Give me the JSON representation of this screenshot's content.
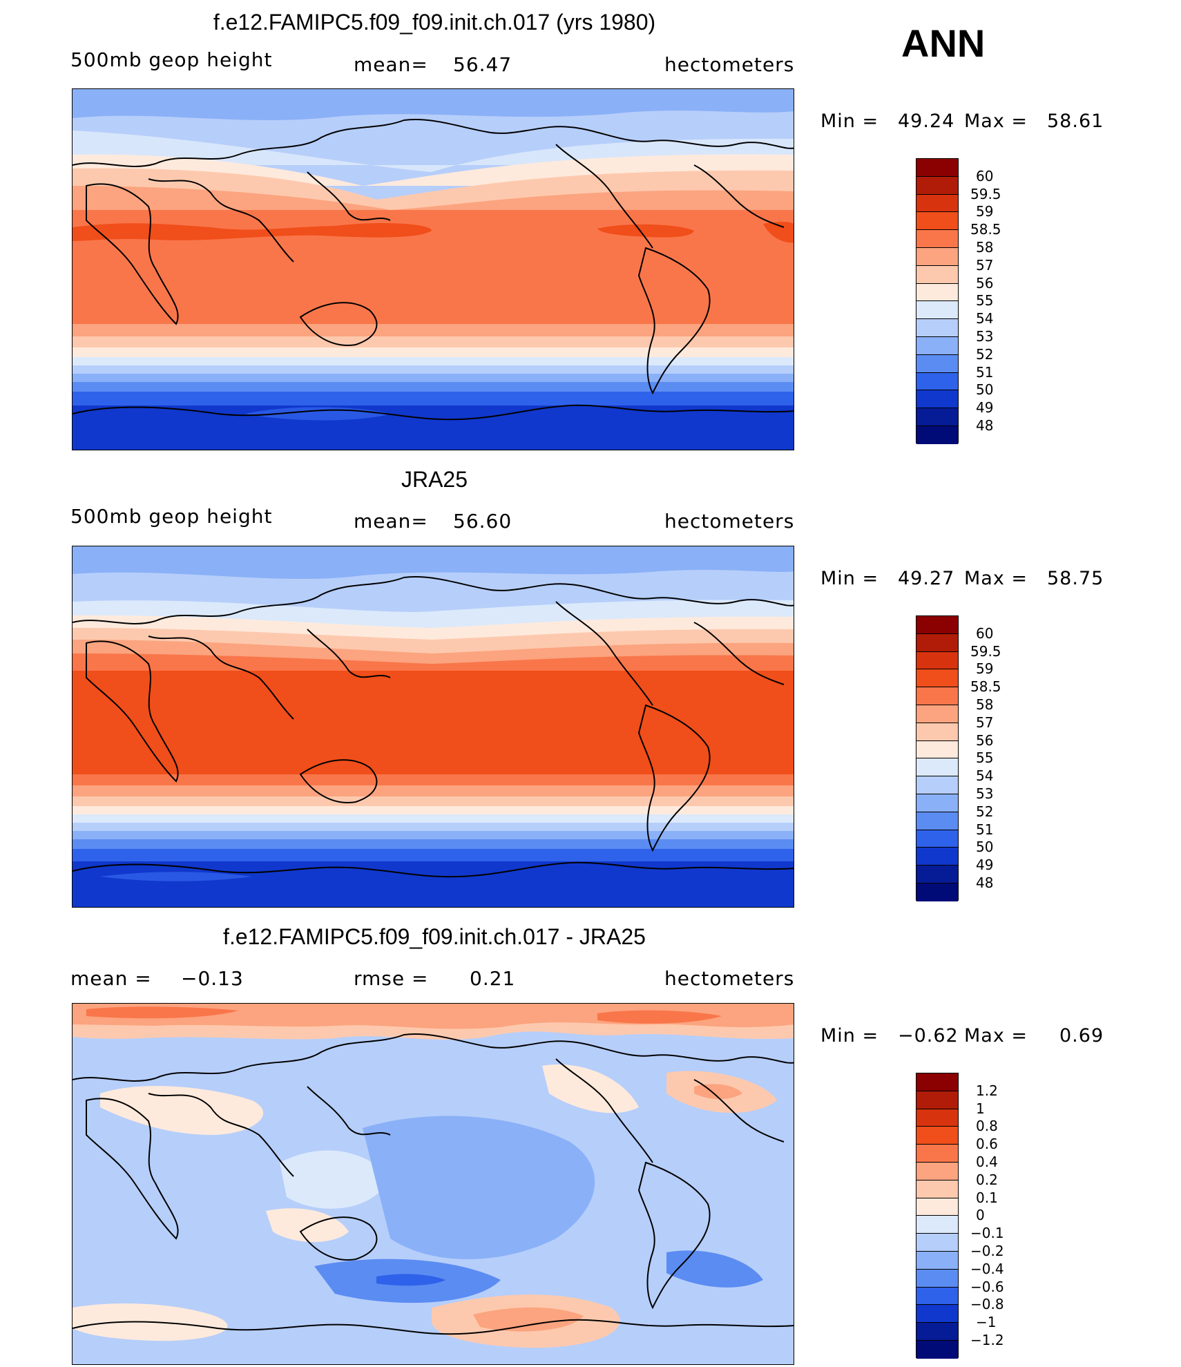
{
  "season": "ANN",
  "chart_data": [
    {
      "type": "heatmap",
      "title": "f.e12.FAMIPC5.f09_f09.init.ch.017 (yrs 1980)",
      "left_label": "500mb geop height",
      "mean_label": "mean=",
      "mean_value": "56.47",
      "units": "hectometers",
      "min_label": "Min =",
      "min_value": "49.24",
      "max_label": "Max =",
      "max_value": "58.61",
      "levels": [
        "60",
        "59.5",
        "59",
        "58.5",
        "58",
        "57",
        "56",
        "55",
        "54",
        "53",
        "52",
        "51",
        "50",
        "49",
        "48"
      ],
      "colors": [
        "#8b0000",
        "#b01c08",
        "#d8330f",
        "#f04e1a",
        "#f9764a",
        "#fba47f",
        "#fdc9ae",
        "#feeadc",
        "#dbe9fb",
        "#b6cefa",
        "#8ab0f7",
        "#5b8cf2",
        "#2f62ea",
        "#1038cd",
        "#061b96",
        "#000b78"
      ]
    },
    {
      "type": "heatmap",
      "title": "JRA25",
      "left_label": "500mb geop height",
      "mean_label": "mean=",
      "mean_value": "56.60",
      "units": "hectometers",
      "min_label": "Min =",
      "min_value": "49.27",
      "max_label": "Max =",
      "max_value": "58.75",
      "levels": [
        "60",
        "59.5",
        "59",
        "58.5",
        "58",
        "57",
        "56",
        "55",
        "54",
        "53",
        "52",
        "51",
        "50",
        "49",
        "48"
      ],
      "colors": [
        "#8b0000",
        "#b01c08",
        "#d8330f",
        "#f04e1a",
        "#f9764a",
        "#fba47f",
        "#fdc9ae",
        "#feeadc",
        "#dbe9fb",
        "#b6cefa",
        "#8ab0f7",
        "#5b8cf2",
        "#2f62ea",
        "#1038cd",
        "#061b96",
        "#000b78"
      ]
    },
    {
      "type": "heatmap",
      "title": "f.e12.FAMIPC5.f09_f09.init.ch.017 - JRA25",
      "left_label": "mean =",
      "left_value": "−0.13",
      "rmse_label": "rmse =",
      "rmse_value": "0.21",
      "units": "hectometers",
      "min_label": "Min =",
      "min_value": "−0.62",
      "max_label": "Max =",
      "max_value": "0.69",
      "levels": [
        "1.2",
        "1",
        "0.8",
        "0.6",
        "0.4",
        "0.2",
        "0.1",
        "0",
        "−0.1",
        "−0.2",
        "−0.4",
        "−0.6",
        "−0.8",
        "−1",
        "−1.2"
      ],
      "colors": [
        "#8b0000",
        "#b01c08",
        "#d8330f",
        "#f04e1a",
        "#f9764a",
        "#fba47f",
        "#fdc9ae",
        "#feeadc",
        "#dbe9fb",
        "#b6cefa",
        "#8ab0f7",
        "#5b8cf2",
        "#2f62ea",
        "#1038cd",
        "#061b96",
        "#000b78"
      ]
    }
  ]
}
